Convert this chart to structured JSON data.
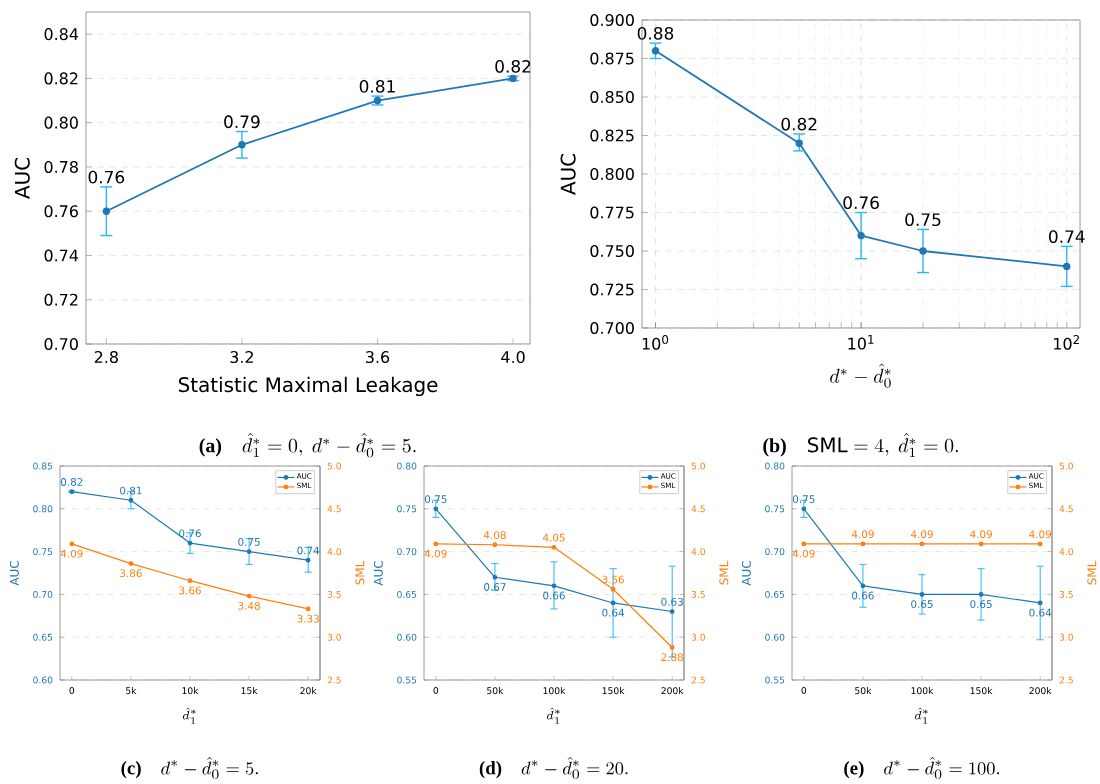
{
  "chart_data": [
    {
      "type": "line",
      "xlabel": "Statistic Maximal Leakage",
      "ylabel": "AUC",
      "x": [
        2.8,
        3.2,
        3.6,
        4.0
      ],
      "series": [
        {
          "color": "#1f77b4",
          "values": [
            0.76,
            0.79,
            0.81,
            0.82
          ],
          "errors": [
            [
              0.749,
              0.771
            ],
            [
              0.784,
              0.796
            ],
            [
              0.808,
              0.812
            ],
            [
              0.819,
              0.821
            ]
          ]
        }
      ],
      "xlim": [
        2.74,
        4.05
      ],
      "xticks": [
        2.8,
        3.2,
        3.6,
        {
          "value": 4.0,
          "label": "4.0"
        }
      ],
      "ylim": [
        0.7,
        0.85
      ],
      "yticks": [
        {
          "value": 0.7,
          "label": "0.70"
        },
        0.72,
        0.74,
        0.76,
        0.78,
        {
          "value": 0.8,
          "label": "0.80"
        },
        0.82,
        0.84
      ],
      "grid": "y",
      "data_labels": true,
      "marker": "circle",
      "line_style": "solid",
      "annotations": [
        "(a)",
        "\\hat{d}_1^*=0,\\ d^*-\\hat{d}_0^*=5."
      ]
    },
    {
      "type": "line",
      "xlabel": "d^*-\\hat{d}_0^*",
      "ylabel": "AUC",
      "x": [
        1,
        5,
        10,
        20,
        100
      ],
      "series": [
        {
          "color": "#1f77b4",
          "values": [
            0.88,
            0.82,
            0.76,
            0.75,
            0.74
          ],
          "errors": [
            [
              0.875,
              0.885
            ],
            [
              0.815,
              0.826
            ],
            [
              0.745,
              0.775
            ],
            [
              0.736,
              0.764
            ],
            [
              0.727,
              0.753
            ]
          ]
        }
      ],
      "log": "x",
      "xlim": [
        0.86,
        116
      ],
      "xticks": [
        {
          "value": 1,
          "label": "10$^{0}$"
        },
        {
          "value": 10,
          "label": "10$^{1}$"
        },
        {
          "value": 100,
          "label": "10$^{2}$"
        }
      ],
      "ylim": [
        0.7,
        0.9
      ],
      "yticks": [
        {
          "value": 0.7,
          "label": "0.700"
        },
        {
          "value": 0.725,
          "label": "0.725"
        },
        {
          "value": 0.75,
          "label": "0.750"
        },
        {
          "value": 0.775,
          "label": "0.775"
        },
        {
          "value": 0.8,
          "label": "0.800"
        },
        {
          "value": 0.825,
          "label": "0.825"
        },
        {
          "value": 0.85,
          "label": "0.850"
        },
        {
          "value": 0.875,
          "label": "0.875"
        },
        {
          "value": 0.9,
          "label": "0.900"
        }
      ],
      "grid": true,
      "data_labels": true,
      "marker": "circle",
      "line_style": "solid",
      "annotations": [
        "(b)",
        "\\mathrm{SML}=4,\\ \\hat{d}_1^*=0."
      ]
    },
    {
      "type": "line",
      "xlabel": "\\hat{d}_1^*",
      "ylabel": "AUC",
      "y2label": "SML",
      "categories": [
        "0",
        "5k",
        "10k",
        "15k",
        "20k"
      ],
      "series": [
        {
          "name": "AUC",
          "color": "#1f77b4",
          "values": [
            0.82,
            0.81,
            0.76,
            0.75,
            0.74
          ],
          "errors": [
            [
              0.819,
              0.821
            ],
            [
              0.8,
              0.82
            ],
            [
              0.748,
              0.772
            ],
            [
              0.735,
              0.765
            ],
            [
              0.726,
              0.755
            ]
          ]
        },
        {
          "name": "SML",
          "color": "#ff7f0e",
          "axis": "y2",
          "values": [
            4.09,
            3.86,
            3.66,
            3.48,
            3.33
          ]
        }
      ],
      "ylim": [
        0.6,
        0.85
      ],
      "yticks": [
        {
          "value": 0.6,
          "label": "0.60"
        },
        0.65,
        {
          "value": 0.7,
          "label": "0.70"
        },
        0.75,
        {
          "value": 0.8,
          "label": "0.80"
        },
        0.85
      ],
      "y2lim": [
        2.5,
        5.0
      ],
      "y2ticks": [
        2.5,
        {
          "value": 3,
          "label": "3.0"
        },
        3.5,
        {
          "value": 4,
          "label": "4.0"
        },
        4.5,
        {
          "value": 5,
          "label": "5.0"
        }
      ],
      "grid": "y",
      "legend": "top right",
      "data_labels": true,
      "marker": "circle",
      "line_style": "solid",
      "annotations": [
        "(c)",
        "d^*-\\hat{d}_0^*=5."
      ]
    },
    {
      "type": "line",
      "xlabel": "\\hat{d}_1^*",
      "ylabel": "AUC",
      "y2label": "SML",
      "categories": [
        "0",
        "50k",
        "100k",
        "150k",
        "200k"
      ],
      "series": [
        {
          "name": "AUC",
          "color": "#1f77b4",
          "values": [
            0.75,
            0.67,
            0.66,
            0.64,
            0.63
          ],
          "errors": [
            [
              0.74,
              0.76
            ],
            [
              0.655,
              0.686
            ],
            [
              0.633,
              0.688
            ],
            [
              0.6,
              0.68
            ],
            [
              0.577,
              0.683
            ]
          ]
        },
        {
          "name": "SML",
          "color": "#ff7f0e",
          "axis": "y2",
          "values": [
            4.09,
            4.08,
            4.05,
            3.56,
            2.88
          ]
        }
      ],
      "ylim": [
        0.55,
        0.8
      ],
      "yticks": [
        0.55,
        {
          "value": 0.6,
          "label": "0.60"
        },
        0.65,
        {
          "value": 0.7,
          "label": "0.70"
        },
        0.75,
        {
          "value": 0.8,
          "label": "0.80"
        }
      ],
      "y2lim": [
        2.5,
        5.0
      ],
      "y2ticks": [
        2.5,
        {
          "value": 3,
          "label": "3.0"
        },
        3.5,
        {
          "value": 4,
          "label": "4.0"
        },
        4.5,
        {
          "value": 5,
          "label": "5.0"
        }
      ],
      "grid": "y",
      "legend": "top right",
      "data_labels": true,
      "marker": "circle",
      "line_style": "solid",
      "annotations": [
        "(d)",
        "d^*-\\hat{d}_0^*=20."
      ]
    },
    {
      "type": "line",
      "xlabel": "\\hat{d}_1^*",
      "ylabel": "AUC",
      "y2label": "SML",
      "categories": [
        "0",
        "50k",
        "100k",
        "150k",
        "200k"
      ],
      "series": [
        {
          "name": "AUC",
          "color": "#1f77b4",
          "values": [
            0.75,
            0.66,
            0.65,
            0.65,
            0.64
          ],
          "errors": [
            [
              0.74,
              0.76
            ],
            [
              0.635,
              0.685
            ],
            [
              0.627,
              0.673
            ],
            [
              0.62,
              0.68
            ],
            [
              0.597,
              0.683
            ]
          ]
        },
        {
          "name": "SML",
          "color": "#ff7f0e",
          "axis": "y2",
          "values": [
            4.09,
            4.09,
            4.09,
            4.09,
            4.09
          ]
        }
      ],
      "ylim": [
        0.55,
        0.8
      ],
      "yticks": [
        0.55,
        {
          "value": 0.6,
          "label": "0.60"
        },
        0.65,
        {
          "value": 0.7,
          "label": "0.70"
        },
        0.75,
        {
          "value": 0.8,
          "label": "0.80"
        }
      ],
      "y2lim": [
        2.5,
        5.0
      ],
      "y2ticks": [
        2.5,
        {
          "value": 3,
          "label": "3.0"
        },
        3.5,
        {
          "value": 4,
          "label": "4.0"
        },
        4.5,
        {
          "value": 5,
          "label": "5.0"
        }
      ],
      "grid": "y",
      "legend": "top right",
      "data_labels": true,
      "marker": "circle",
      "line_style": "solid",
      "annotations": [
        "(e)",
        "d^*-\\hat{d}_0^*=100."
      ]
    }
  ]
}
